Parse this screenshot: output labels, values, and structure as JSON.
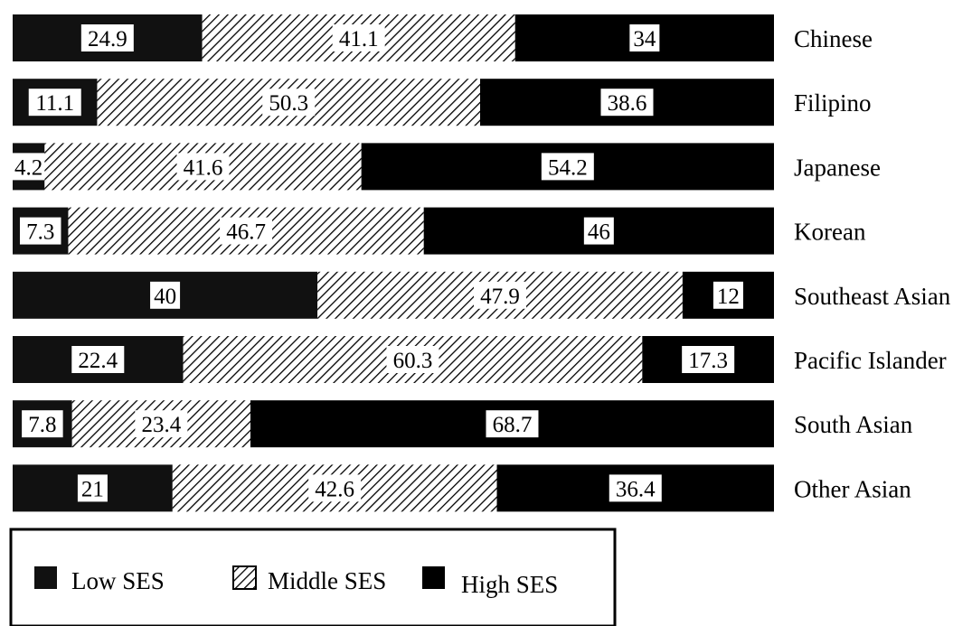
{
  "chart_data": {
    "type": "bar",
    "orientation": "horizontal",
    "stacked": true,
    "percent_stacked": true,
    "categories": [
      "Chinese",
      "Filipino",
      "Japanese",
      "Korean",
      "Southeast Asian",
      "Pacific Islander",
      "South Asian",
      "Other Asian"
    ],
    "series": [
      {
        "name": "Low SES",
        "values": [
          24.9,
          11.1,
          4.2,
          7.3,
          40,
          22.4,
          7.8,
          21
        ],
        "labels": [
          "24.9",
          "11.1",
          "4.2",
          "7.3",
          "40",
          "22.4",
          "7.8",
          "21"
        ],
        "fill": "solid",
        "color": "#111111"
      },
      {
        "name": "Middle SES",
        "values": [
          41.1,
          50.3,
          41.6,
          46.7,
          47.9,
          60.3,
          23.4,
          42.6
        ],
        "labels": [
          "41.1",
          "50.3",
          "41.6",
          "46.7",
          "47.9",
          "60.3",
          "23.4",
          "42.6"
        ],
        "fill": "hatched",
        "color": "#000000"
      },
      {
        "name": "High SES",
        "values": [
          34,
          38.6,
          54.2,
          46,
          12,
          17.3,
          68.7,
          36.4
        ],
        "labels": [
          "34",
          "38.6",
          "54.2",
          "46",
          "12",
          "17.3",
          "68.7",
          "36.4"
        ],
        "fill": "solid",
        "color": "#000000"
      }
    ],
    "legend_position": "bottom-left",
    "grid": false,
    "title": "",
    "xlabel": "",
    "ylabel": ""
  }
}
